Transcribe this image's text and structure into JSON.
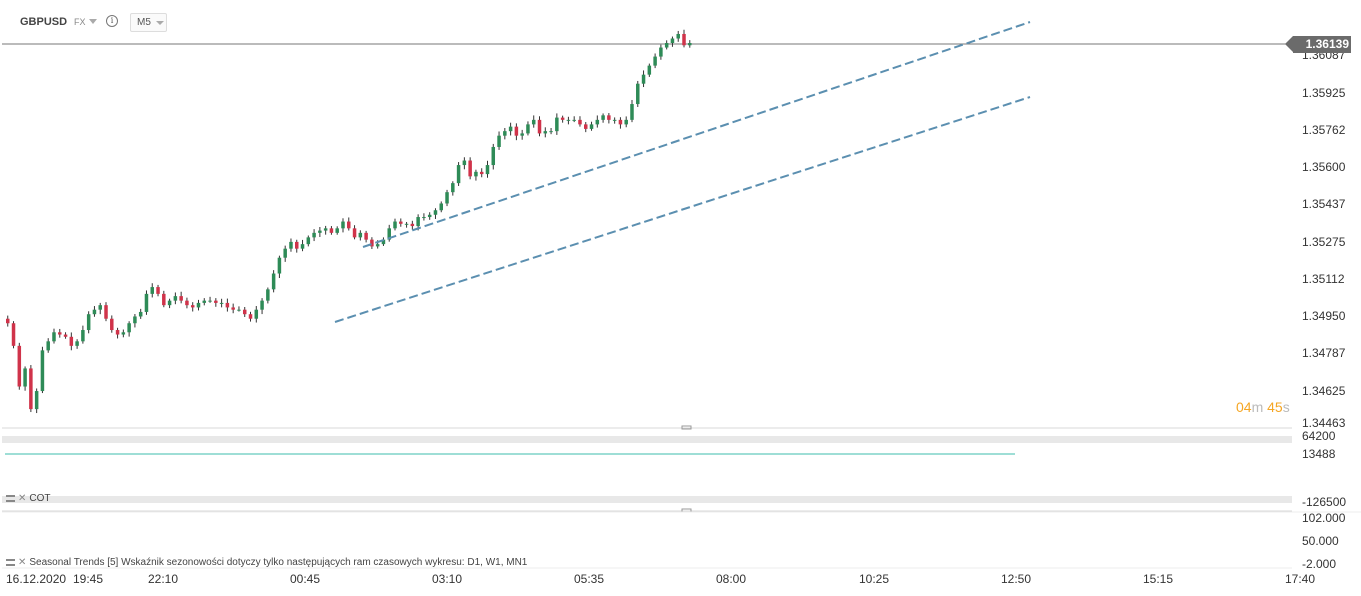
{
  "header": {
    "symbol": "GBPUSD",
    "market": "FX",
    "info_glyph": "i",
    "timeframe": "M5"
  },
  "price_axis": {
    "labels": [
      "1.36087",
      "1.35925",
      "1.35762",
      "1.35600",
      "1.35437",
      "1.35275",
      "1.35112",
      "1.34950",
      "1.34787",
      "1.34625",
      "1.34463"
    ],
    "current_price": "1.36139"
  },
  "timer": {
    "minutes": "04",
    "m_unit": "m",
    "seconds": "45",
    "s_unit": "s"
  },
  "indicator_pane_1": {
    "axis_top": "64200",
    "axis_mid": "13488",
    "axis_bottom": "-126500",
    "label": "COT",
    "line_color": "#7fd3c8"
  },
  "indicator_pane_2": {
    "axis_top": "102.000",
    "axis_mid": "50.000",
    "axis_bottom": "-2.000",
    "label": "Seasonal Trends [5] Wskaźnik sezonowości dotyczy tylko następujących ram czasowych wykresu: D1, W1, MN1"
  },
  "time_axis": [
    "16.12.2020",
    "19:45",
    "22:10",
    "00:45",
    "03:10",
    "05:35",
    "08:00",
    "10:25",
    "12:50",
    "15:15",
    "17:40"
  ],
  "colors": {
    "bull": "#2e8b57",
    "bear": "#d0334a",
    "channel": "#5b8fb0",
    "price_line": "#555555"
  },
  "chart_data": {
    "type": "candlestick",
    "title": "",
    "y_range": [
      1.34463,
      1.3625
    ],
    "series": [
      {
        "values": [
          1.349,
          1.348,
          1.3462,
          1.347,
          1.3452,
          1.346,
          1.3478,
          1.3482,
          1.3486,
          1.3485,
          1.3484,
          1.348,
          1.3482,
          1.3487,
          1.3494,
          1.3496,
          1.3498,
          1.3492,
          1.3487,
          1.3485,
          1.3486,
          1.349,
          1.3493,
          1.3495,
          1.3503,
          1.3506,
          1.3503,
          1.3498,
          1.35,
          1.3502,
          1.35,
          1.3498,
          1.3497,
          1.3499,
          1.35,
          1.35,
          1.3499,
          1.3499,
          1.3497,
          1.3496,
          1.3496,
          1.3494,
          1.3492,
          1.3496,
          1.35,
          1.3505,
          1.3512,
          1.3519,
          1.3523,
          1.3526,
          1.3523,
          1.3525,
          1.3528,
          1.353,
          1.3531,
          1.3532,
          1.353,
          1.3532,
          1.3535,
          1.3532,
          1.3528,
          1.353,
          1.3527,
          1.3524,
          1.3525,
          1.3527,
          1.3532,
          1.3535,
          1.3534,
          1.3534,
          1.3533,
          1.3537,
          1.3537,
          1.3538,
          1.354,
          1.3543,
          1.3548,
          1.3552,
          1.356,
          1.3562,
          1.3555,
          1.3557,
          1.3556,
          1.356,
          1.3568,
          1.3573,
          1.3575,
          1.3577,
          1.3573,
          1.3574,
          1.3578,
          1.358,
          1.3574,
          1.3575,
          1.3575,
          1.3581,
          1.358,
          1.358,
          1.358,
          1.3578,
          1.3576,
          1.3578,
          1.358,
          1.3582,
          1.358,
          1.358,
          1.3578,
          1.358,
          1.3587,
          1.3596,
          1.36,
          1.3604,
          1.3608,
          1.3612,
          1.3614,
          1.3616,
          1.3618,
          1.3613,
          1.3614
        ]
      }
    ]
  }
}
